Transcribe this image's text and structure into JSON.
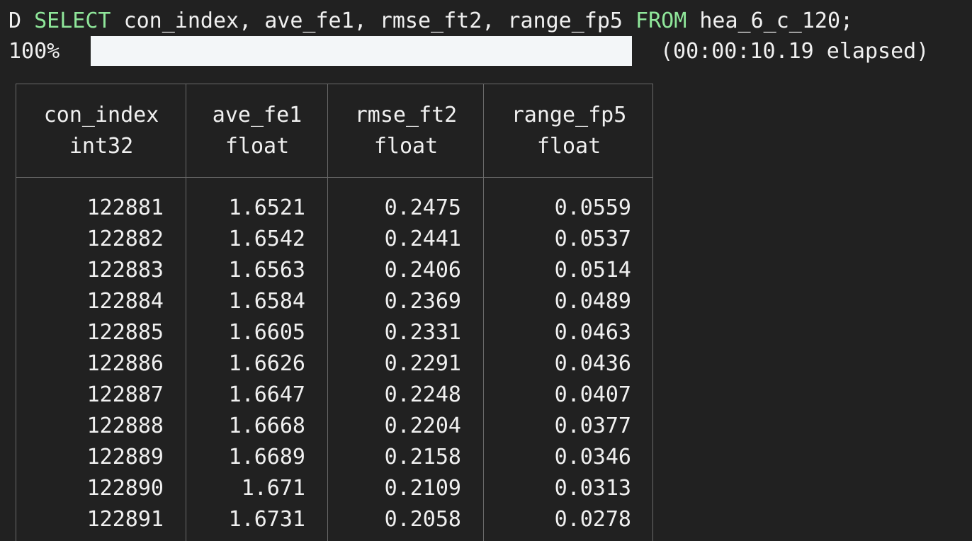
{
  "command": {
    "prompt": "D",
    "select_kw": "SELECT",
    "columns_text": "con_index, ave_fe1, rmse_ft2, range_fp5",
    "from_kw": "FROM",
    "table_text": "hea_6_c_120;"
  },
  "progress": {
    "percent_label": "100%",
    "value": 1.0,
    "elapsed": "(00:00:10.19 elapsed)"
  },
  "table": {
    "columns": [
      {
        "name": "con_index",
        "type": "int32"
      },
      {
        "name": "ave_fe1",
        "type": "float"
      },
      {
        "name": "rmse_ft2",
        "type": "float"
      },
      {
        "name": "range_fp5",
        "type": "float"
      }
    ],
    "rows": [
      [
        "122881",
        "1.6521",
        "0.2475",
        "0.0559"
      ],
      [
        "122882",
        "1.6542",
        "0.2441",
        "0.0537"
      ],
      [
        "122883",
        "1.6563",
        "0.2406",
        "0.0514"
      ],
      [
        "122884",
        "1.6584",
        "0.2369",
        "0.0489"
      ],
      [
        "122885",
        "1.6605",
        "0.2331",
        "0.0463"
      ],
      [
        "122886",
        "1.6626",
        "0.2291",
        "0.0436"
      ],
      [
        "122887",
        "1.6647",
        "0.2248",
        "0.0407"
      ],
      [
        "122888",
        "1.6668",
        "0.2204",
        "0.0377"
      ],
      [
        "122889",
        "1.6689",
        "0.2158",
        "0.0346"
      ],
      [
        "122890",
        "1.671",
        "0.2109",
        "0.0313"
      ],
      [
        "122891",
        "1.6731",
        "0.2058",
        "0.0278"
      ]
    ]
  }
}
